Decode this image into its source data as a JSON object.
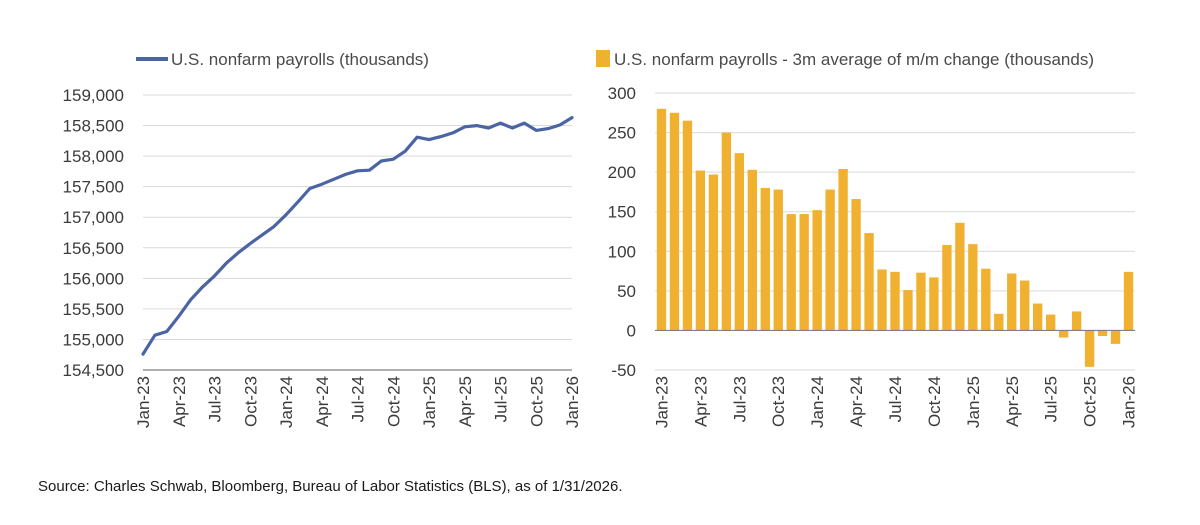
{
  "source_note": "Source: Charles Schwab, Bloomberg, Bureau of Labor Statistics (BLS), as of 1/31/2026.",
  "colors": {
    "line": "#4a64a4",
    "bar": "#f0b030",
    "grid": "#d9d9d9",
    "axis": "#7f7f7f"
  },
  "chart_data": [
    {
      "id": "payroll_level",
      "type": "line",
      "title": "",
      "legend": "U.S. nonfarm payrolls (thousands)",
      "ylim": [
        154500,
        159000
      ],
      "yticks": [
        154500,
        155000,
        155500,
        156000,
        156500,
        157000,
        157500,
        158000,
        158500,
        159000
      ],
      "ytick_labels": [
        "154,500",
        "155,000",
        "155,500",
        "156,000",
        "156,500",
        "157,000",
        "157,500",
        "158,000",
        "158,500",
        "159,000"
      ],
      "xtick_labels": [
        "Jan-23",
        "Apr-23",
        "Jul-23",
        "Oct-23",
        "Jan-24",
        "Apr-24",
        "Jul-24",
        "Oct-24",
        "Jan-25",
        "Apr-25",
        "Jul-25",
        "Oct-25",
        "Jan-26"
      ],
      "x": [
        "Jan-23",
        "Feb-23",
        "Mar-23",
        "Apr-23",
        "May-23",
        "Jun-23",
        "Jul-23",
        "Aug-23",
        "Sep-23",
        "Oct-23",
        "Nov-23",
        "Dec-23",
        "Jan-24",
        "Feb-24",
        "Mar-24",
        "Apr-24",
        "May-24",
        "Jun-24",
        "Jul-24",
        "Aug-24",
        "Sep-24",
        "Oct-24",
        "Nov-24",
        "Dec-24",
        "Jan-25",
        "Feb-25",
        "Mar-25",
        "Apr-25",
        "May-25",
        "Jun-25",
        "Jul-25",
        "Aug-25",
        "Sep-25",
        "Oct-25",
        "Nov-25",
        "Dec-25",
        "Jan-26"
      ],
      "values": [
        154760,
        155070,
        155130,
        155380,
        155650,
        155860,
        156040,
        156250,
        156420,
        156570,
        156710,
        156850,
        157040,
        157250,
        157470,
        157540,
        157620,
        157700,
        157760,
        157770,
        157920,
        157950,
        158080,
        158310,
        158270,
        158320,
        158380,
        158480,
        158500,
        158460,
        158540,
        158460,
        158540,
        158420,
        158450,
        158510,
        158630
      ]
    },
    {
      "id": "payroll_3m_avg_change",
      "type": "bar",
      "title": "",
      "legend": "U.S. nonfarm payrolls - 3m average of m/m change (thousands)",
      "ylim": [
        -50,
        300
      ],
      "yticks": [
        -50,
        0,
        50,
        100,
        150,
        200,
        250,
        300
      ],
      "ytick_labels": [
        "-50",
        "0",
        "50",
        "100",
        "150",
        "200",
        "250",
        "300"
      ],
      "xtick_labels": [
        "Jan-23",
        "Apr-23",
        "Jul-23",
        "Oct-23",
        "Jan-24",
        "Apr-24",
        "Jul-24",
        "Oct-24",
        "Jan-25",
        "Apr-25",
        "Jul-25",
        "Oct-25",
        "Jan-26"
      ],
      "x": [
        "Jan-23",
        "Feb-23",
        "Mar-23",
        "Apr-23",
        "May-23",
        "Jun-23",
        "Jul-23",
        "Aug-23",
        "Sep-23",
        "Oct-23",
        "Nov-23",
        "Dec-23",
        "Jan-24",
        "Feb-24",
        "Mar-24",
        "Apr-24",
        "May-24",
        "Jun-24",
        "Jul-24",
        "Aug-24",
        "Sep-24",
        "Oct-24",
        "Nov-24",
        "Dec-24",
        "Jan-25",
        "Feb-25",
        "Mar-25",
        "Apr-25",
        "May-25",
        "Jun-25",
        "Jul-25",
        "Aug-25",
        "Sep-25",
        "Oct-25",
        "Nov-25",
        "Dec-25",
        "Jan-26"
      ],
      "values": [
        280,
        275,
        265,
        202,
        197,
        250,
        224,
        203,
        180,
        178,
        147,
        147,
        152,
        178,
        204,
        166,
        123,
        77,
        74,
        51,
        73,
        67,
        108,
        136,
        109,
        78,
        21,
        72,
        63,
        34,
        20,
        -9,
        24,
        -46,
        -7,
        -17,
        74
      ]
    }
  ]
}
